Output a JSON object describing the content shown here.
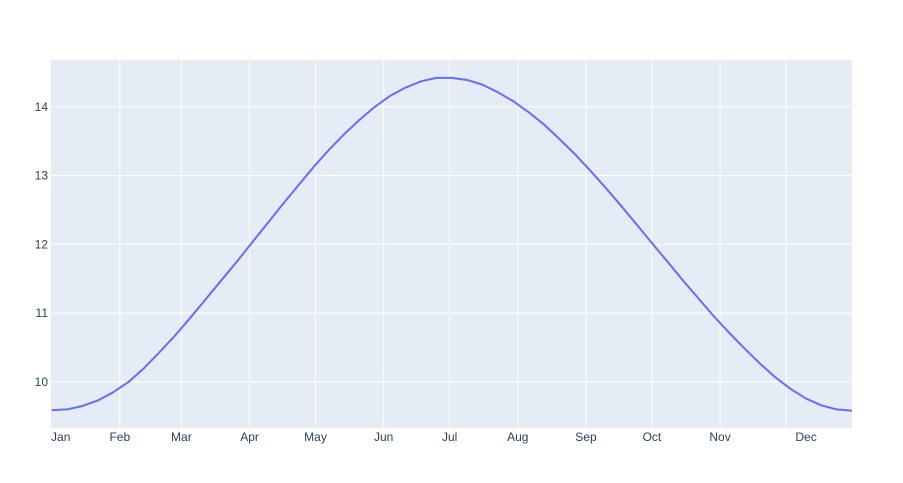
{
  "chart_data": {
    "type": "line",
    "x_tick_labels": [
      "Jan",
      "Feb",
      "Mar",
      "Apr",
      "May",
      "Jun",
      "Jul",
      "Aug",
      "Sep",
      "Oct",
      "Nov",
      "Dec"
    ],
    "y_ticks": [
      10,
      11,
      12,
      13,
      14
    ],
    "xlim": [
      0.7,
      365.0
    ],
    "ylim": [
      9.33,
      14.68
    ],
    "grid": true,
    "legend": "none",
    "colors": {
      "plot_background": "#E5ECF6",
      "grid": "#ffffff",
      "line": "#636EFA",
      "tick_text": "#2a3f5f"
    },
    "series": [
      {
        "x": [
          1,
          8,
          15,
          22,
          29,
          36,
          43,
          50,
          57,
          64,
          71,
          78,
          85,
          92,
          99,
          106,
          113,
          120,
          127,
          134,
          141,
          148,
          155,
          162,
          169,
          176,
          183,
          190,
          197,
          204,
          211,
          218,
          225,
          232,
          239,
          246,
          253,
          260,
          267,
          274,
          281,
          288,
          295,
          302,
          309,
          316,
          323,
          330,
          337,
          344,
          351,
          358,
          365
        ],
        "y": [
          9.59,
          9.6,
          9.65,
          9.73,
          9.85,
          10.0,
          10.2,
          10.43,
          10.67,
          10.93,
          11.2,
          11.47,
          11.74,
          12.02,
          12.3,
          12.58,
          12.85,
          13.12,
          13.37,
          13.6,
          13.81,
          14.0,
          14.16,
          14.28,
          14.37,
          14.42,
          14.42,
          14.39,
          14.32,
          14.21,
          14.08,
          13.92,
          13.74,
          13.53,
          13.31,
          13.07,
          12.82,
          12.56,
          12.29,
          12.02,
          11.75,
          11.48,
          11.22,
          10.96,
          10.72,
          10.49,
          10.27,
          10.07,
          9.9,
          9.76,
          9.66,
          9.6,
          9.58
        ]
      }
    ]
  }
}
